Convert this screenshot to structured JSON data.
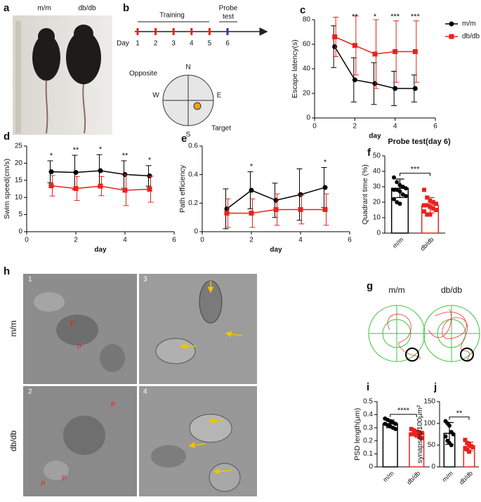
{
  "figure": {
    "panel_labels": [
      "a",
      "b",
      "c",
      "d",
      "e",
      "f",
      "h",
      "g",
      "i",
      "j"
    ],
    "photo_labels": [
      "m/m",
      "db/db"
    ],
    "timeline": {
      "training": "Training",
      "probe": [
        "Probe",
        "test"
      ],
      "day": "Day",
      "days": [
        "1",
        "2",
        "3",
        "4",
        "5",
        "6"
      ]
    },
    "maze": {
      "north": "N",
      "south": "S",
      "west": "W",
      "east": "E",
      "opposite": "Opposite",
      "target": "Target"
    },
    "em": {
      "row_labels": [
        "m/m",
        "db/db"
      ],
      "image_numbers": [
        "1",
        "3",
        "2",
        "4"
      ],
      "markers": [
        "P",
        "P",
        "P",
        "P",
        "P"
      ]
    },
    "tracks": {
      "titles": [
        "m/m",
        "db/db"
      ]
    }
  },
  "chart_data": [
    {
      "type": "line",
      "xlabel": "day",
      "ylabel": "Escape latency(s)",
      "x": [
        1,
        2,
        3,
        4,
        5
      ],
      "xlim": [
        0,
        6
      ],
      "xticks": [
        0,
        2,
        4,
        6
      ],
      "ylim": [
        0,
        80
      ],
      "yticks": [
        0,
        20,
        40,
        60,
        80
      ],
      "legend": "top-right",
      "series": [
        {
          "name": "m/m",
          "color": "#000000",
          "marker": "circle",
          "values": [
            58,
            31,
            28,
            24,
            24
          ],
          "errors": [
            17,
            18,
            17,
            14,
            11
          ]
        },
        {
          "name": "db/db",
          "color": "#e8221c",
          "marker": "square",
          "values": [
            66,
            59,
            52,
            54,
            54
          ],
          "errors": [
            16,
            24,
            28,
            25,
            25
          ]
        }
      ],
      "annotations": [
        {
          "x": 2,
          "text": "**"
        },
        {
          "x": 3,
          "text": "*"
        },
        {
          "x": 4,
          "text": "***"
        },
        {
          "x": 5,
          "text": "***"
        }
      ]
    },
    {
      "type": "line",
      "xlabel": "day",
      "ylabel": "Swim speed(cm/s)",
      "x": [
        1,
        2,
        3,
        4,
        5
      ],
      "xlim": [
        0,
        6
      ],
      "xticks": [
        0,
        2,
        4,
        6
      ],
      "ylim": [
        0,
        25
      ],
      "yticks": [
        0,
        5,
        10,
        15,
        20,
        25
      ],
      "series": [
        {
          "name": "m/m",
          "color": "#000000",
          "marker": "circle",
          "values": [
            17.5,
            17.3,
            17.8,
            16.7,
            16.3
          ],
          "errors": [
            3.2,
            5,
            4.7,
            4,
            3
          ]
        },
        {
          "name": "db/db",
          "color": "#e8221c",
          "marker": "square",
          "values": [
            13.4,
            12.6,
            13.3,
            12.1,
            12.4
          ],
          "errors": [
            3,
            3.5,
            2.8,
            4.5,
            3.8
          ]
        }
      ],
      "annotations": [
        {
          "x": 1,
          "text": "*"
        },
        {
          "x": 2,
          "text": "**"
        },
        {
          "x": 3,
          "text": "*"
        },
        {
          "x": 4,
          "text": "**"
        },
        {
          "x": 5,
          "text": "*"
        }
      ]
    },
    {
      "type": "line",
      "xlabel": "day",
      "ylabel": "Path efficiency",
      "x": [
        1,
        2,
        3,
        4,
        5
      ],
      "xlim": [
        0,
        6
      ],
      "xticks": [
        0,
        2,
        4,
        6
      ],
      "ylim": [
        0,
        0.6
      ],
      "yticks": [
        0,
        0.2,
        0.4,
        0.6
      ],
      "series": [
        {
          "name": "m/m",
          "color": "#000000",
          "marker": "circle",
          "values": [
            0.16,
            0.29,
            0.22,
            0.26,
            0.31
          ],
          "errors": [
            0.14,
            0.13,
            0.12,
            0.18,
            0.14
          ]
        },
        {
          "name": "db/db",
          "color": "#e8221c",
          "marker": "square",
          "values": [
            0.13,
            0.13,
            0.155,
            0.155,
            0.155
          ],
          "errors": [
            0.1,
            0.1,
            0.11,
            0.1,
            0.11
          ]
        }
      ],
      "annotations": [
        {
          "x": 2,
          "text": "*"
        },
        {
          "x": 5,
          "text": "*"
        }
      ]
    },
    {
      "type": "bar",
      "title": "Probe test(day 6)",
      "ylabel": "Quadrant time (%)",
      "categories": [
        "m/m",
        "db/db"
      ],
      "values": [
        29,
        18
      ],
      "errors": [
        6,
        5
      ],
      "colors": [
        "#000000",
        "#e8221c"
      ],
      "points": [
        [
          36,
          33,
          31,
          30,
          29,
          28,
          28,
          27,
          25,
          24,
          22,
          20,
          19
        ],
        [
          28,
          23,
          21,
          20,
          19,
          18,
          18,
          17,
          16,
          15,
          14,
          12,
          12
        ]
      ],
      "ylim": [
        0,
        50
      ],
      "yticks": [
        0,
        10,
        20,
        30,
        40,
        50
      ],
      "significance": "***"
    },
    {
      "type": "bar",
      "ylabel": "PSD length(μm)",
      "categories": [
        "m/m",
        "db/db"
      ],
      "values": [
        0.33,
        0.26
      ],
      "errors": [
        0.03,
        0.02
      ],
      "colors": [
        "#000000",
        "#e8221c"
      ],
      "points": [
        [
          0.37,
          0.36,
          0.35,
          0.34,
          0.33,
          0.33,
          0.32,
          0.31,
          0.3,
          0.29
        ],
        [
          0.29,
          0.28,
          0.27,
          0.26,
          0.26,
          0.25,
          0.25,
          0.24,
          0.23,
          0.22
        ]
      ],
      "ylim": [
        0,
        0.5
      ],
      "yticks": [
        0,
        0.1,
        0.2,
        0.3,
        0.4,
        0.5
      ],
      "significance": "****"
    },
    {
      "type": "bar",
      "ylabel": "synapses/100μm²",
      "categories": [
        "m/m",
        "db/db"
      ],
      "values": [
        77,
        47
      ],
      "errors": [
        25,
        10
      ],
      "colors": [
        "#000000",
        "#e8221c"
      ],
      "points": [
        [
          105,
          100,
          95,
          80,
          75,
          70,
          60,
          55,
          50
        ],
        [
          62,
          55,
          52,
          48,
          45,
          42,
          40,
          35
        ]
      ],
      "ylim": [
        0,
        150
      ],
      "yticks": [
        0,
        50,
        100,
        150
      ],
      "significance": "**"
    }
  ]
}
